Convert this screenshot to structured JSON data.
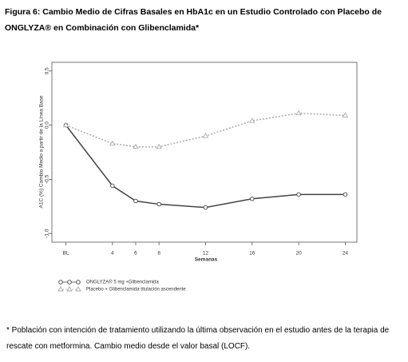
{
  "chart_data": {
    "type": "line",
    "title_lines": [
      "Figura 6:   Cambio Medio de Cifras Basales en HbA1c en un Estudio Controlado con Placebo de",
      "ONGLYZA® en Combinación con Glibenclamida*"
    ],
    "ylabel": "A1C (%) Cambio Medio a partir de la Línea Base",
    "xlabel": "Semanas",
    "x": [
      0,
      4,
      6,
      8,
      12,
      16,
      20,
      24
    ],
    "xlim": [
      -1.2,
      25
    ],
    "xticks": [
      {
        "value": 0,
        "label": "BL"
      },
      4,
      6,
      8,
      12,
      16,
      20,
      24
    ],
    "ylim": [
      -1.08,
      0.58
    ],
    "yticks": [
      0.5,
      {
        "value": 0,
        "label": "0.0"
      },
      -0.5,
      {
        "value": -1,
        "label": "-1.0"
      }
    ],
    "series": [
      {
        "name": "ONGLYZA® 5 mg +Glibenclamida",
        "color": "#444444",
        "marker": "circle",
        "dash": false,
        "values": [
          0,
          -0.56,
          -0.7,
          -0.73,
          -0.76,
          -0.68,
          -0.64,
          -0.64
        ]
      },
      {
        "name": "Placebo + Glibenclamida titulación ascendente",
        "color": "#aaaaaa",
        "marker": "triangle",
        "dash": true,
        "values": [
          0,
          -0.17,
          -0.2,
          -0.2,
          -0.1,
          0.04,
          0.11,
          0.09
        ]
      }
    ],
    "footnote": "*  Población con intención de tratamiento utilizando la última observación en el estudio antes de la terapia de rescate con metformina.  Cambio medio desde el valor basal (LOCF)."
  }
}
